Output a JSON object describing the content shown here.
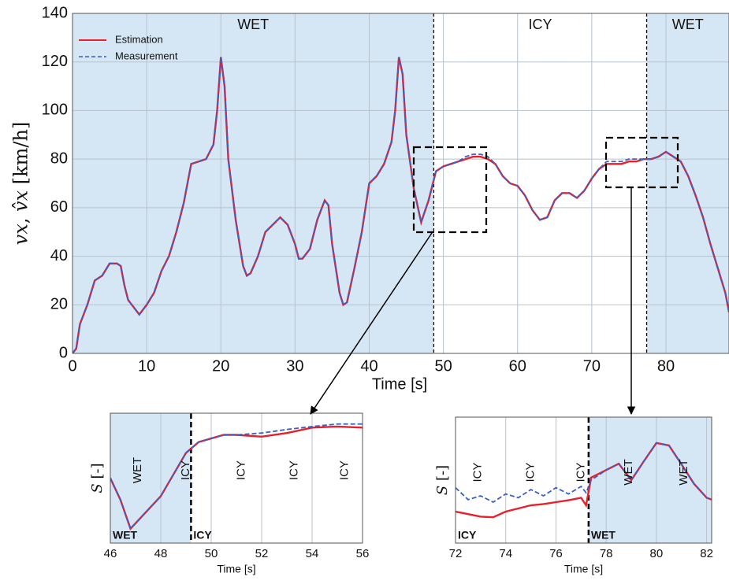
{
  "chart_data": [
    {
      "type": "line",
      "xlabel": "Time [s]",
      "ylabel": "𝑣𝑥, 𝑣̂𝑥 [km/h]",
      "xlim": [
        0,
        88.5
      ],
      "ylim": [
        0,
        140
      ],
      "xticks": [
        0,
        10,
        20,
        30,
        40,
        50,
        60,
        70,
        80
      ],
      "yticks": [
        0,
        20,
        40,
        60,
        80,
        100,
        120,
        140
      ],
      "grid": true,
      "regions": [
        {
          "label": "WET",
          "x": [
            0,
            48.7
          ]
        },
        {
          "label": "ICY",
          "x": [
            48.7,
            77.4
          ]
        },
        {
          "label": "WET",
          "x": [
            77.4,
            88.5
          ]
        }
      ],
      "x": [
        0,
        0.5,
        1,
        2,
        3,
        4,
        5,
        6,
        6.5,
        7,
        7.5,
        8,
        9,
        10,
        11,
        12,
        13,
        14,
        15,
        15.5,
        16,
        17,
        18,
        19,
        19.5,
        20,
        20.5,
        21,
        22,
        23,
        23.5,
        24,
        25,
        26,
        27,
        28,
        29,
        30,
        30.5,
        31,
        32,
        33,
        34,
        34.5,
        35,
        36,
        36.5,
        37,
        38,
        39,
        40,
        41,
        42,
        43,
        43.5,
        44,
        44.5,
        45,
        46,
        47,
        48,
        49,
        50,
        51,
        52,
        53,
        54,
        55,
        56,
        57,
        58,
        59,
        60,
        61,
        62,
        63,
        64,
        65,
        66,
        67,
        68,
        69,
        70,
        71,
        72,
        73,
        74,
        75,
        76,
        77,
        78,
        79,
        80,
        81,
        82,
        83,
        84,
        85,
        86,
        87,
        88,
        88.5
      ],
      "series": [
        {
          "name": "Estimation",
          "color": "#e8202a",
          "dash": false,
          "values": [
            0,
            2,
            12,
            20,
            30,
            32,
            37,
            37,
            36,
            28,
            22,
            20,
            16,
            20,
            25,
            34,
            40,
            50,
            62,
            70,
            78,
            79,
            80,
            86,
            100,
            122,
            110,
            80,
            55,
            36,
            32,
            33,
            40,
            50,
            53,
            56,
            53,
            45,
            39,
            39,
            43,
            55,
            63,
            61,
            45,
            25,
            20,
            21,
            35,
            50,
            70,
            73,
            78,
            87,
            100,
            122,
            115,
            90,
            68,
            54,
            63,
            75,
            77,
            78,
            79,
            80,
            81,
            81,
            80,
            78,
            73,
            70,
            69,
            65,
            59,
            55,
            56,
            63,
            66,
            66,
            64,
            67,
            72,
            76,
            78,
            78,
            78,
            79,
            79,
            80,
            80,
            81,
            83,
            81,
            79,
            73,
            65,
            56,
            45,
            35,
            25,
            17
          ]
        },
        {
          "name": "Measurement",
          "color": "#3a5fc8",
          "dash": true,
          "values": [
            0,
            2,
            12,
            20,
            30,
            32,
            37,
            37,
            36,
            28,
            22,
            20,
            16,
            20,
            25,
            34,
            40,
            50,
            62,
            70,
            78,
            79,
            80,
            86,
            100,
            122,
            110,
            80,
            55,
            36,
            32,
            33,
            40,
            50,
            53,
            56,
            53,
            45,
            39,
            39,
            43,
            55,
            63,
            61,
            45,
            25,
            20,
            21,
            35,
            50,
            70,
            73,
            78,
            87,
            100,
            122,
            115,
            90,
            68,
            54,
            63,
            75,
            77,
            78,
            79,
            81,
            82,
            82,
            81,
            78,
            73,
            70,
            69,
            65,
            59,
            55,
            56,
            63,
            66,
            66,
            64,
            67,
            72,
            76,
            79,
            79,
            79,
            80,
            80,
            80,
            80,
            81,
            83,
            81,
            79,
            73,
            65,
            56,
            45,
            35,
            25,
            17
          ]
        }
      ]
    },
    {
      "type": "line",
      "xlabel": "Time [s]",
      "ylabel": "𝑆 [-]",
      "xlim": [
        46,
        56
      ],
      "ylim": [
        50,
        86
      ],
      "xticks": [
        46,
        48,
        50,
        52,
        54,
        56
      ],
      "regions": [
        {
          "label": "WET",
          "x": [
            46,
            49.2
          ]
        },
        {
          "label": "ICY",
          "x": [
            49.2,
            56
          ]
        }
      ],
      "annotations": [
        "WET",
        "ICY",
        "ICY",
        "ICY",
        "ICY"
      ],
      "x": [
        46,
        46.4,
        46.8,
        47.2,
        47.6,
        48,
        48.5,
        49,
        49.5,
        50,
        50.5,
        51,
        52,
        53,
        54,
        55,
        56
      ],
      "series": [
        {
          "name": "Estimation",
          "color": "#e8202a",
          "dash": false,
          "values": [
            68,
            62,
            54,
            57,
            60,
            63,
            69,
            75,
            78,
            79,
            80,
            80,
            79.5,
            80.5,
            82,
            82.3,
            82
          ]
        },
        {
          "name": "Measurement",
          "color": "#3a5fc8",
          "dash": true,
          "values": [
            68,
            62,
            54,
            57,
            60,
            63,
            69,
            75,
            78,
            79,
            80,
            80,
            80.5,
            81.5,
            82.3,
            83,
            83
          ]
        }
      ]
    },
    {
      "type": "line",
      "xlabel": "Time [s]",
      "ylabel": "𝑆 [-]",
      "xlim": [
        72,
        82.2
      ],
      "ylim": [
        69,
        89
      ],
      "xticks": [
        72,
        74,
        76,
        78,
        80,
        82
      ],
      "regions": [
        {
          "label": "ICY",
          "x": [
            72,
            77.3
          ]
        },
        {
          "label": "WET",
          "x": [
            77.3,
            82.2
          ]
        }
      ],
      "annotations": [
        "ICY",
        "ICY",
        "ICY",
        "WET",
        "WET"
      ],
      "x": [
        72,
        72.5,
        73,
        73.5,
        74,
        74.5,
        75,
        75.5,
        76,
        76.5,
        77,
        77.2,
        77.4,
        78,
        78.5,
        79,
        79.5,
        80,
        80.5,
        81,
        81.5,
        82,
        82.2
      ],
      "series": [
        {
          "name": "Estimation",
          "color": "#e8202a",
          "dash": false,
          "values": [
            74,
            73.6,
            73.2,
            73.1,
            74,
            74.5,
            75,
            75.2,
            75.5,
            75.8,
            76.2,
            75,
            79.4,
            80.6,
            81.6,
            79,
            82,
            84.9,
            84.5,
            81.5,
            78.4,
            76.2,
            75.9
          ]
        },
        {
          "name": "Measurement",
          "color": "#3a5fc8",
          "dash": true,
          "values": [
            77.8,
            75.9,
            76.5,
            75.5,
            76.8,
            76.2,
            77.5,
            76.5,
            77.8,
            76.8,
            78,
            77,
            79,
            80.6,
            81.6,
            79,
            82,
            84.9,
            84.5,
            81.5,
            78.4,
            76.2,
            75.9
          ]
        }
      ]
    }
  ]
}
